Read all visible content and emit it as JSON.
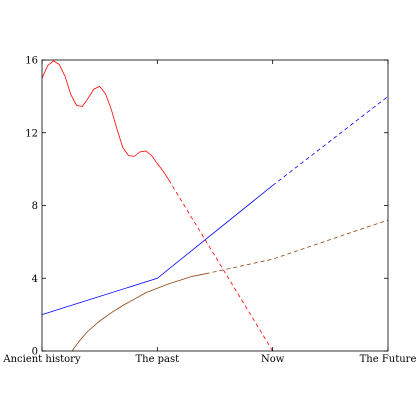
{
  "chart_data": {
    "type": "line",
    "title": "",
    "xlabel": "",
    "ylabel": "",
    "xlim": [
      0,
      3
    ],
    "ylim": [
      0,
      16
    ],
    "grid": false,
    "xticks": [
      {
        "value": 0,
        "label": "Ancient history"
      },
      {
        "value": 1,
        "label": "The past"
      },
      {
        "value": 2,
        "label": "Now"
      },
      {
        "value": 3,
        "label": "The Future"
      }
    ],
    "yticks": [
      {
        "value": 0,
        "label": "0"
      },
      {
        "value": 4,
        "label": "4"
      },
      {
        "value": 8,
        "label": "8"
      },
      {
        "value": 12,
        "label": "12"
      },
      {
        "value": 16,
        "label": "16"
      }
    ],
    "series": [
      {
        "name": "red",
        "color": "#ff0000",
        "solid": [
          [
            0,
            15.0
          ],
          [
            0.05,
            15.7
          ],
          [
            0.1,
            15.95
          ],
          [
            0.15,
            15.75
          ],
          [
            0.2,
            15.1
          ],
          [
            0.25,
            14.1
          ],
          [
            0.3,
            13.5
          ],
          [
            0.35,
            13.45
          ],
          [
            0.4,
            13.9
          ],
          [
            0.45,
            14.4
          ],
          [
            0.5,
            14.55
          ],
          [
            0.55,
            14.15
          ],
          [
            0.6,
            13.3
          ],
          [
            0.65,
            12.2
          ],
          [
            0.7,
            11.2
          ],
          [
            0.75,
            10.75
          ],
          [
            0.8,
            10.7
          ],
          [
            0.85,
            10.95
          ],
          [
            0.9,
            11.0
          ],
          [
            0.95,
            10.75
          ],
          [
            1.0,
            10.3
          ],
          [
            1.05,
            9.9
          ],
          [
            1.1,
            9.4
          ]
        ],
        "dashed": [
          [
            1.1,
            9.4
          ],
          [
            2.0,
            0.0
          ]
        ]
      },
      {
        "name": "blue",
        "color": "#0000ff",
        "solid": [
          [
            0,
            2.0
          ],
          [
            1.0,
            4.0
          ],
          [
            2.0,
            9.1
          ]
        ],
        "dashed": [
          [
            2.0,
            9.1
          ],
          [
            3.0,
            14.0
          ]
        ]
      },
      {
        "name": "brown",
        "color": "#8b4513",
        "solid": [
          [
            0.26,
            0.0
          ],
          [
            0.3,
            0.35
          ],
          [
            0.35,
            0.75
          ],
          [
            0.4,
            1.1
          ],
          [
            0.5,
            1.65
          ],
          [
            0.6,
            2.1
          ],
          [
            0.7,
            2.5
          ],
          [
            0.8,
            2.85
          ],
          [
            0.9,
            3.2
          ],
          [
            1.0,
            3.45
          ],
          [
            1.1,
            3.7
          ],
          [
            1.2,
            3.9
          ],
          [
            1.3,
            4.1
          ],
          [
            1.42,
            4.25
          ]
        ],
        "dashed": [
          [
            1.42,
            4.25
          ],
          [
            2.0,
            5.05
          ],
          [
            3.0,
            7.2
          ]
        ]
      }
    ]
  }
}
